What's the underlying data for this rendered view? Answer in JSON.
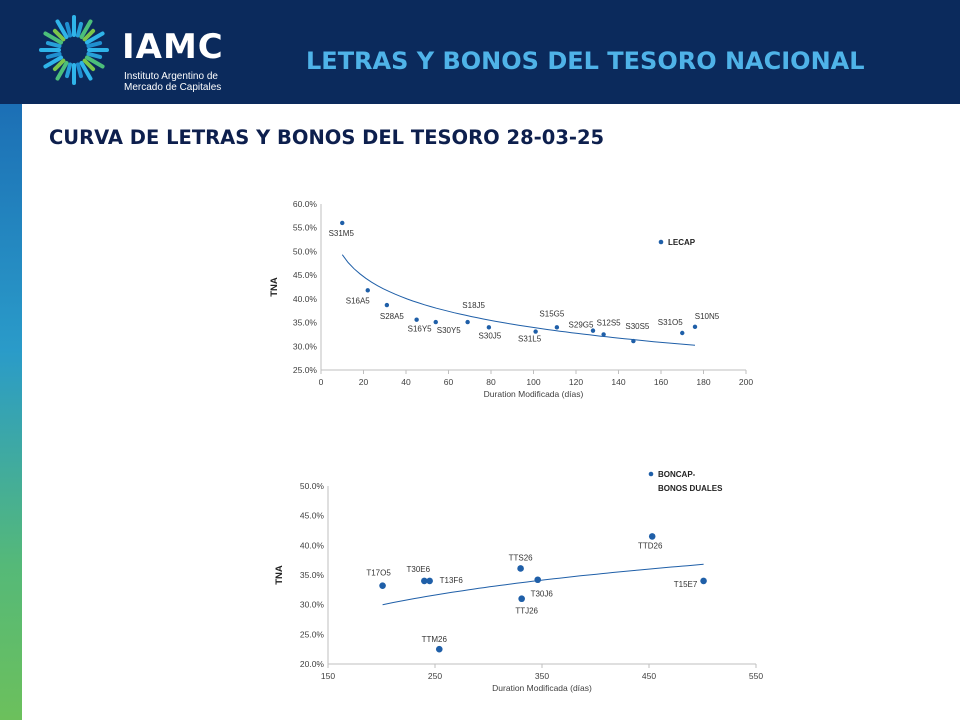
{
  "header": {
    "logo_text": "IAMC",
    "logo_subtitle_line1": "Instituto Argentino de",
    "logo_subtitle_line2": "Mercado de Capitales",
    "title": "LETRAS Y BONOS DEL TESORO NACIONAL"
  },
  "page_title": "CURVA DE LETRAS Y BONOS DEL TESORO  28-03-25",
  "colors": {
    "header_bg": "#0b2a5c",
    "title_accent": "#4fb3e8",
    "series": "#1f5fa8"
  },
  "chart_data": [
    {
      "type": "scatter",
      "title": "",
      "xlabel": "Duration Modificada (días)",
      "ylabel": "TNA",
      "xlim": [
        0,
        200
      ],
      "ylim": [
        25.0,
        60.0
      ],
      "xticks": [
        "0",
        "20",
        "40",
        "60",
        "80",
        "100",
        "120",
        "140",
        "160",
        "180",
        "200"
      ],
      "yticks": [
        "25.0%",
        "30.0%",
        "35.0%",
        "40.0%",
        "45.0%",
        "50.0%",
        "55.0%",
        "60.0%"
      ],
      "grid": false,
      "legend": {
        "entries": [
          "LECAP"
        ],
        "position": "top-right"
      },
      "series": [
        {
          "name": "LECAP",
          "points": [
            {
              "label": "S31M5",
              "x": 10,
              "y": 56.0
            },
            {
              "label": "S16A5",
              "x": 22,
              "y": 41.8
            },
            {
              "label": "S28A5",
              "x": 31,
              "y": 38.7
            },
            {
              "label": "S16Y5",
              "x": 45,
              "y": 35.6
            },
            {
              "label": "S30Y5",
              "x": 54,
              "y": 35.1
            },
            {
              "label": "S18J5",
              "x": 69,
              "y": 35.1
            },
            {
              "label": "S30J5",
              "x": 79,
              "y": 34.0
            },
            {
              "label": "S31L5",
              "x": 101,
              "y": 33.1
            },
            {
              "label": "S15G5",
              "x": 111,
              "y": 34.0
            },
            {
              "label": "S29G5",
              "x": 128,
              "y": 33.3
            },
            {
              "label": "S12S5",
              "x": 133,
              "y": 32.5
            },
            {
              "label": "S30S5",
              "x": 147,
              "y": 31.1
            },
            {
              "label": "S31O5",
              "x": 170,
              "y": 32.8
            },
            {
              "label": "S10N5",
              "x": 176,
              "y": 34.1
            }
          ]
        }
      ],
      "trendline": {
        "type": "log",
        "x_range": [
          10,
          176
        ],
        "y_start": 49.3,
        "y_end": 30.2
      }
    },
    {
      "type": "scatter",
      "title": "",
      "xlabel": "Duration Modificada (días)",
      "ylabel": "TNA",
      "xlim": [
        150,
        550
      ],
      "ylim": [
        20.0,
        50.0
      ],
      "xticks": [
        "150",
        "250",
        "350",
        "450",
        "550"
      ],
      "yticks": [
        "20.0%",
        "25.0%",
        "30.0%",
        "35.0%",
        "40.0%",
        "45.0%",
        "50.0%"
      ],
      "grid": false,
      "legend": {
        "entries": [
          "BONCAP- BONOS DUALES"
        ],
        "position": "top-right"
      },
      "series": [
        {
          "name": "BONCAP- BONOS DUALES",
          "points": [
            {
              "label": "T17O5",
              "x": 201,
              "y": 33.2
            },
            {
              "label": "T30E6",
              "x": 240,
              "y": 34.0
            },
            {
              "label": "T13F6",
              "x": 245,
              "y": 34.0
            },
            {
              "label": "TTM26",
              "x": 254,
              "y": 22.5
            },
            {
              "label": "TTS26",
              "x": 330,
              "y": 36.1
            },
            {
              "label": "TTJ26",
              "x": 331,
              "y": 31.0
            },
            {
              "label": "T30J6",
              "x": 346,
              "y": 34.2
            },
            {
              "label": "TTD26",
              "x": 453,
              "y": 41.5
            },
            {
              "label": "T15E7",
              "x": 501,
              "y": 34.0
            }
          ]
        }
      ],
      "trendline": {
        "type": "log",
        "x_range": [
          201,
          501
        ],
        "y_start": 30.0,
        "y_end": 36.8
      }
    }
  ]
}
